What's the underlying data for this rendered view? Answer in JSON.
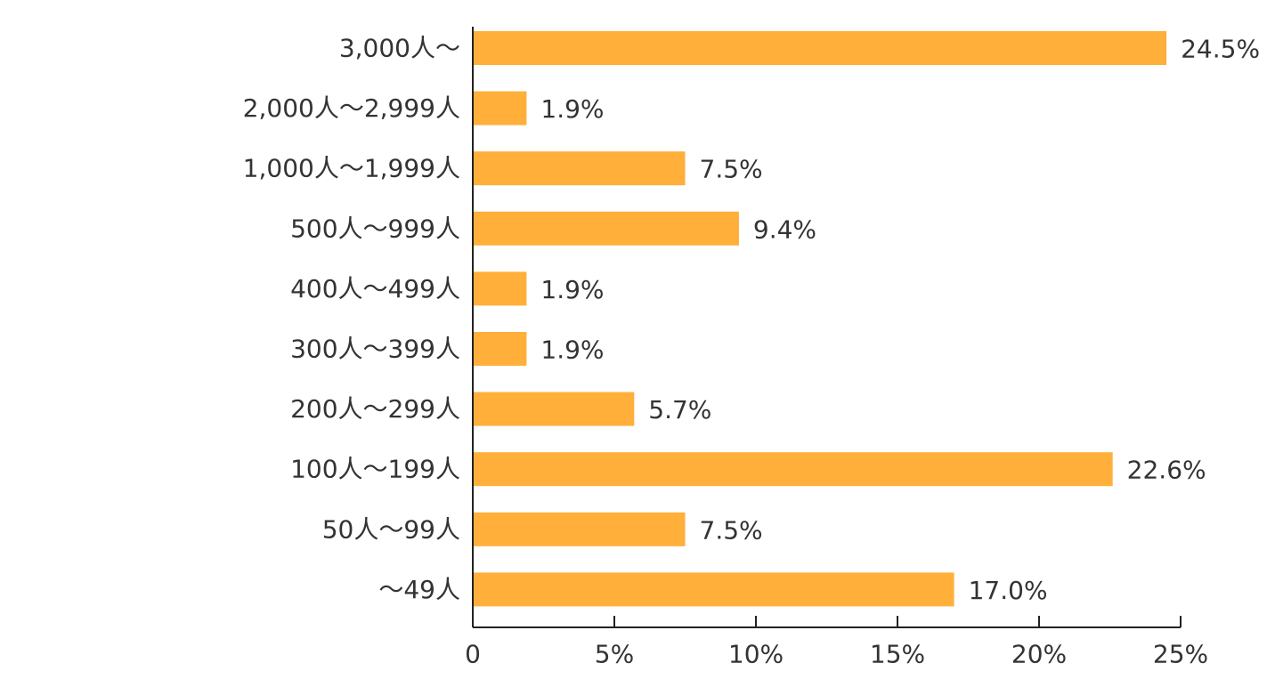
{
  "chart_data": {
    "type": "bar",
    "orientation": "horizontal",
    "categories": [
      "3,000人〜",
      "2,000人〜2,999人",
      "1,000人〜1,999人",
      "500人〜999人",
      "400人〜499人",
      "300人〜399人",
      "200人〜299人",
      "100人〜199人",
      "50人〜99人",
      "〜49人"
    ],
    "values": [
      24.5,
      1.9,
      7.5,
      9.4,
      1.9,
      1.9,
      5.7,
      22.6,
      7.5,
      17.0
    ],
    "value_labels": [
      "24.5%",
      "1.9%",
      "7.5%",
      "9.4%",
      "1.9%",
      "1.9%",
      "5.7%",
      "22.6%",
      "7.5%",
      "17.0%"
    ],
    "xlim": [
      0,
      25
    ],
    "x_ticks": [
      0,
      5,
      10,
      15,
      20,
      25
    ],
    "x_tick_labels": [
      "0",
      "5%",
      "10%",
      "15%",
      "20%",
      "25%"
    ],
    "bar_color": "#FFAF3A",
    "axis_color": "#222222",
    "grid": false
  }
}
